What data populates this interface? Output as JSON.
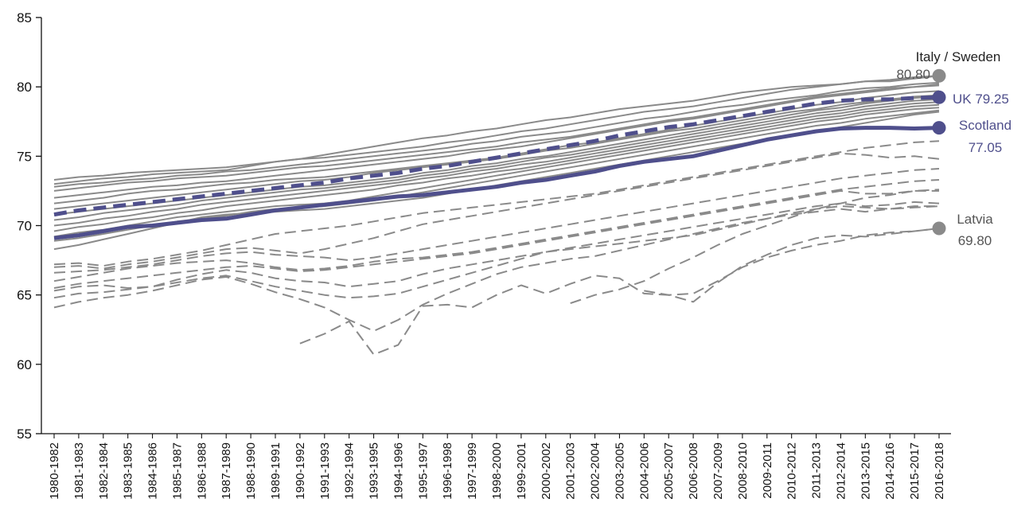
{
  "chart_data": {
    "type": "line",
    "title": "",
    "xlabel": "",
    "ylabel": "",
    "ylim": [
      55,
      85
    ],
    "yticks": [
      55,
      60,
      65,
      70,
      75,
      80,
      85
    ],
    "grid": false,
    "legend": "none",
    "categories": [
      "1980-1982",
      "1981-1983",
      "1982-1984",
      "1983-1985",
      "1984-1986",
      "1985-1987",
      "1986-1988",
      "1987-1989",
      "1988-1990",
      "1989-1991",
      "1990-1992",
      "1991-1993",
      "1992-1994",
      "1993-1995",
      "1994-1996",
      "1995-1997",
      "1996-1998",
      "1997-1999",
      "1998-2000",
      "1999-2001",
      "2000-2002",
      "2001-2003",
      "2002-2004",
      "2003-2005",
      "2004-2006",
      "2005-2007",
      "2006-2008",
      "2007-2009",
      "2008-2010",
      "2009-2011",
      "2010-2012",
      "2011-2013",
      "2012-2014",
      "2013-2015",
      "2014-2016",
      "2015-2017",
      "2016-2018"
    ],
    "colors": {
      "highlight": "#4f4f8c",
      "background_series": "#8a8a8a",
      "label_dark": "#222222",
      "label_grey": "#555555"
    },
    "highlighted_series": [
      {
        "name": "Scotland",
        "style": "solid",
        "values": [
          69.1,
          69.3,
          69.6,
          69.9,
          70.0,
          70.2,
          70.4,
          70.5,
          70.8,
          71.1,
          71.3,
          71.5,
          71.7,
          71.9,
          72.1,
          72.2,
          72.4,
          72.6,
          72.8,
          73.1,
          73.3,
          73.6,
          73.9,
          74.3,
          74.6,
          74.8,
          75.0,
          75.4,
          75.8,
          76.2,
          76.5,
          76.8,
          77.0,
          77.05,
          77.05,
          77.0,
          77.05
        ]
      },
      {
        "name": "UK",
        "style": "dashed",
        "values": [
          70.8,
          71.1,
          71.3,
          71.5,
          71.7,
          71.9,
          72.1,
          72.3,
          72.5,
          72.7,
          72.9,
          73.1,
          73.4,
          73.6,
          73.8,
          74.1,
          74.3,
          74.6,
          74.9,
          75.2,
          75.5,
          75.8,
          76.1,
          76.5,
          76.8,
          77.1,
          77.3,
          77.6,
          77.9,
          78.2,
          78.5,
          78.8,
          79.0,
          79.1,
          79.1,
          79.2,
          79.25
        ]
      }
    ],
    "background_series": [
      {
        "style": "solid",
        "values": [
          73.3,
          73.5,
          73.6,
          73.8,
          73.9,
          74.0,
          74.1,
          74.2,
          74.4,
          74.6,
          74.8,
          75.1,
          75.4,
          75.7,
          76.0,
          76.3,
          76.5,
          76.8,
          77.0,
          77.3,
          77.6,
          77.8,
          78.1,
          78.4,
          78.6,
          78.8,
          79.0,
          79.3,
          79.6,
          79.8,
          80.0,
          80.1,
          80.2,
          80.4,
          80.5,
          80.7,
          80.8
        ]
      },
      {
        "style": "solid",
        "values": [
          73.0,
          73.2,
          73.4,
          73.5,
          73.7,
          73.8,
          73.9,
          74.0,
          74.3,
          74.6,
          74.8,
          74.9,
          75.1,
          75.3,
          75.5,
          75.7,
          76.0,
          76.2,
          76.5,
          76.8,
          77.0,
          77.3,
          77.6,
          77.9,
          78.2,
          78.4,
          78.6,
          78.9,
          79.2,
          79.5,
          79.8,
          80.0,
          80.2,
          80.4,
          80.4,
          80.6,
          80.8
        ]
      },
      {
        "style": "solid",
        "values": [
          72.8,
          73.0,
          73.1,
          73.3,
          73.4,
          73.6,
          73.7,
          73.9,
          74.0,
          74.2,
          74.4,
          74.6,
          74.8,
          75.0,
          75.2,
          75.4,
          75.6,
          75.9,
          76.1,
          76.4,
          76.6,
          76.8,
          77.1,
          77.4,
          77.7,
          77.9,
          78.2,
          78.5,
          78.7,
          79.0,
          79.2,
          79.4,
          79.7,
          79.9,
          80.0,
          80.2,
          80.3
        ]
      },
      {
        "style": "solid",
        "values": [
          72.5,
          72.7,
          72.9,
          73.1,
          73.2,
          73.4,
          73.5,
          73.6,
          73.8,
          74.0,
          74.2,
          74.3,
          74.5,
          74.7,
          74.9,
          75.1,
          75.3,
          75.5,
          75.7,
          76.0,
          76.2,
          76.4,
          76.7,
          77.0,
          77.3,
          77.6,
          77.8,
          78.1,
          78.4,
          78.7,
          79.0,
          79.3,
          79.5,
          79.7,
          79.9,
          80.0,
          80.2
        ]
      },
      {
        "style": "solid",
        "values": [
          72.0,
          72.2,
          72.4,
          72.6,
          72.8,
          72.9,
          73.1,
          73.2,
          73.4,
          73.6,
          73.8,
          74.0,
          74.2,
          74.4,
          74.6,
          74.8,
          75.0,
          75.3,
          75.5,
          75.7,
          76.0,
          76.3,
          76.6,
          76.9,
          77.2,
          77.5,
          77.7,
          78.0,
          78.3,
          78.6,
          78.9,
          79.2,
          79.4,
          79.6,
          79.8,
          80.0,
          80.1
        ]
      },
      {
        "style": "solid",
        "values": [
          71.6,
          71.8,
          72.0,
          72.3,
          72.5,
          72.6,
          72.8,
          73.0,
          73.1,
          73.3,
          73.4,
          73.5,
          73.7,
          73.9,
          74.1,
          74.3,
          74.5,
          74.7,
          74.9,
          75.2,
          75.5,
          75.8,
          76.0,
          76.3,
          76.6,
          76.9,
          77.2,
          77.5,
          77.8,
          78.1,
          78.4,
          78.7,
          78.9,
          79.2,
          79.4,
          79.6,
          79.7
        ]
      },
      {
        "style": "solid",
        "values": [
          71.2,
          71.4,
          71.6,
          71.8,
          72.0,
          72.2,
          72.4,
          72.6,
          72.8,
          73.0,
          73.2,
          73.3,
          73.5,
          73.8,
          74.0,
          74.2,
          74.4,
          74.6,
          74.8,
          75.1,
          75.4,
          75.6,
          75.9,
          76.2,
          76.5,
          76.8,
          77.0,
          77.3,
          77.6,
          77.9,
          78.2,
          78.4,
          78.7,
          78.9,
          79.1,
          79.3,
          79.4
        ]
      },
      {
        "style": "solid",
        "values": [
          70.8,
          71.0,
          71.2,
          71.4,
          71.6,
          71.8,
          72.0,
          72.2,
          72.4,
          72.6,
          72.8,
          72.9,
          73.1,
          73.3,
          73.5,
          73.8,
          74.0,
          74.3,
          74.5,
          74.8,
          75.0,
          75.3,
          75.6,
          75.9,
          76.2,
          76.5,
          76.8,
          77.1,
          77.4,
          77.7,
          78.0,
          78.3,
          78.5,
          78.8,
          79.0,
          79.2,
          79.3
        ]
      },
      {
        "style": "solid",
        "values": [
          70.4,
          70.6,
          70.9,
          71.1,
          71.3,
          71.5,
          71.8,
          72.0,
          72.2,
          72.4,
          72.6,
          72.7,
          72.9,
          73.1,
          73.3,
          73.6,
          73.8,
          74.1,
          74.3,
          74.6,
          74.9,
          75.1,
          75.4,
          75.7,
          76.0,
          76.3,
          76.6,
          76.9,
          77.2,
          77.5,
          77.8,
          78.1,
          78.3,
          78.6,
          78.8,
          79.0,
          79.1
        ]
      },
      {
        "style": "solid",
        "values": [
          70.0,
          70.2,
          70.5,
          70.7,
          71.0,
          71.2,
          71.5,
          71.7,
          71.9,
          72.1,
          72.3,
          72.5,
          72.7,
          72.9,
          73.1,
          73.4,
          73.6,
          73.9,
          74.1,
          74.4,
          74.6,
          74.9,
          75.2,
          75.5,
          75.8,
          76.1,
          76.4,
          76.7,
          77.0,
          77.3,
          77.6,
          77.9,
          78.1,
          78.4,
          78.6,
          78.8,
          78.9
        ]
      },
      {
        "style": "solid",
        "values": [
          69.6,
          69.9,
          70.1,
          70.4,
          70.6,
          70.9,
          71.1,
          71.4,
          71.6,
          71.8,
          72.0,
          72.2,
          72.4,
          72.6,
          72.9,
          73.1,
          73.4,
          73.6,
          73.9,
          74.1,
          74.4,
          74.7,
          75.0,
          75.3,
          75.6,
          75.9,
          76.2,
          76.5,
          76.8,
          77.1,
          77.4,
          77.7,
          77.9,
          78.2,
          78.4,
          78.6,
          78.7
        ]
      },
      {
        "style": "solid",
        "values": [
          69.2,
          69.5,
          69.7,
          70.0,
          70.3,
          70.6,
          70.8,
          71.0,
          71.2,
          71.4,
          71.5,
          71.6,
          71.8,
          72.1,
          72.4,
          72.7,
          73.0,
          73.3,
          73.6,
          73.9,
          74.2,
          74.5,
          74.8,
          75.1,
          75.4,
          75.7,
          76.0,
          76.3,
          76.6,
          76.9,
          77.2,
          77.5,
          77.7,
          78.0,
          78.2,
          78.4,
          78.5
        ]
      },
      {
        "style": "solid",
        "values": [
          68.9,
          69.1,
          69.4,
          69.7,
          70.0,
          70.3,
          70.5,
          70.7,
          71.0,
          71.2,
          71.3,
          71.4,
          71.6,
          71.8,
          72.1,
          72.4,
          72.7,
          73.0,
          73.3,
          73.6,
          73.9,
          74.2,
          74.5,
          74.8,
          75.1,
          75.4,
          75.7,
          76.0,
          76.3,
          76.6,
          76.9,
          77.2,
          77.4,
          77.7,
          77.9,
          78.1,
          78.3
        ]
      },
      {
        "style": "solid",
        "values": [
          68.3,
          68.6,
          69.0,
          69.4,
          69.8,
          70.2,
          70.6,
          70.8,
          70.9,
          71.0,
          71.1,
          71.2,
          71.4,
          71.6,
          71.8,
          72.0,
          72.3,
          72.6,
          72.9,
          73.2,
          73.5,
          73.8,
          74.1,
          74.4,
          74.7,
          75.0,
          75.3,
          75.6,
          75.9,
          76.2,
          76.5,
          76.8,
          77.1,
          77.4,
          77.7,
          78.0,
          78.2
        ]
      },
      {
        "style": "dashed",
        "values": [
          67.2,
          67.3,
          67.1,
          67.4,
          67.6,
          67.9,
          68.2,
          68.6,
          69.0,
          69.4,
          69.6,
          69.8,
          70.0,
          70.3,
          70.6,
          70.9,
          71.1,
          71.3,
          71.5,
          71.7,
          71.9,
          72.1,
          72.3,
          72.6,
          72.9,
          73.2,
          73.5,
          73.8,
          74.1,
          74.4,
          74.7,
          75.0,
          75.3,
          75.6,
          75.8,
          76.0,
          76.1
        ]
      },
      {
        "style": "dashed",
        "values": [
          67.0,
          67.1,
          66.9,
          67.2,
          67.4,
          67.7,
          68.0,
          68.3,
          68.4,
          68.2,
          68.0,
          68.3,
          68.7,
          69.1,
          69.6,
          70.1,
          70.4,
          70.7,
          71.0,
          71.3,
          71.6,
          71.9,
          72.2,
          72.5,
          72.8,
          73.1,
          73.4,
          73.7,
          74.0,
          74.3,
          74.6,
          74.9,
          75.2,
          75.1,
          74.9,
          75.0,
          74.8
        ]
      },
      {
        "style": "dashed",
        "values": [
          66.6,
          66.7,
          66.8,
          67.0,
          67.2,
          67.5,
          67.8,
          68.0,
          68.1,
          67.9,
          67.8,
          67.7,
          67.5,
          67.7,
          68.0,
          68.3,
          68.6,
          68.9,
          69.2,
          69.5,
          69.8,
          70.1,
          70.4,
          70.7,
          71.0,
          71.3,
          71.6,
          71.9,
          72.2,
          72.5,
          72.8,
          73.1,
          73.4,
          73.6,
          73.8,
          74.0,
          74.1
        ]
      },
      {
        "style": "dashed",
        "values": [
          66.0,
          66.3,
          66.6,
          66.9,
          67.1,
          67.3,
          67.4,
          67.5,
          67.3,
          67.0,
          66.8,
          66.9,
          67.1,
          67.4,
          67.6,
          67.7,
          67.9,
          68.1,
          68.4,
          68.7,
          69.0,
          69.3,
          69.6,
          69.9,
          70.2,
          70.5,
          70.8,
          71.1,
          71.4,
          71.7,
          72.0,
          72.3,
          72.6,
          72.8,
          73.0,
          73.2,
          73.3
        ]
      },
      {
        "style": "dashed",
        "values": [
          65.5,
          65.8,
          66.0,
          66.2,
          66.4,
          66.6,
          66.8,
          67.0,
          67.1,
          66.9,
          66.7,
          66.8,
          67.0,
          67.2,
          67.4,
          67.6,
          67.8,
          68.0,
          68.3,
          68.6,
          68.9,
          69.2,
          69.5,
          69.8,
          70.1,
          70.4,
          70.7,
          71.0,
          71.3,
          71.6,
          71.9,
          72.2,
          72.5,
          72.3,
          72.3,
          72.5,
          72.5
        ]
      },
      {
        "style": "dashed",
        "values": [
          65.3,
          65.6,
          65.7,
          65.5,
          65.6,
          66.1,
          66.5,
          66.8,
          66.6,
          66.2,
          66.0,
          65.9,
          65.6,
          65.8,
          66.0,
          66.5,
          66.9,
          67.2,
          67.5,
          67.8,
          68.1,
          68.4,
          68.7,
          69.0,
          69.3,
          69.6,
          69.9,
          70.2,
          70.5,
          70.8,
          71.1,
          71.4,
          71.6,
          71.4,
          71.5,
          71.7,
          71.6
        ]
      },
      {
        "style": "dashed",
        "values": [
          64.8,
          65.1,
          65.2,
          65.4,
          65.6,
          65.9,
          66.2,
          66.4,
          66.0,
          65.6,
          65.3,
          65.0,
          64.8,
          64.9,
          65.1,
          65.6,
          66.1,
          66.6,
          67.1,
          67.6,
          68.1,
          68.3,
          68.5,
          68.7,
          68.9,
          69.1,
          69.3,
          69.7,
          70.1,
          70.5,
          70.9,
          71.2,
          71.4,
          71.3,
          71.2,
          71.3,
          71.4
        ]
      },
      {
        "style": "dashed",
        "values": [
          64.1,
          64.5,
          64.8,
          65.0,
          65.3,
          65.7,
          66.1,
          66.3,
          65.8,
          65.2,
          64.7,
          64.1,
          63.2,
          62.4,
          63.2,
          64.3,
          65.1,
          65.8,
          66.5,
          67.0,
          67.3,
          67.6,
          67.8,
          68.2,
          68.6,
          69.0,
          69.4,
          69.8,
          70.2,
          70.5,
          70.8,
          71.0,
          71.2,
          71.0,
          71.2,
          71.4,
          71.4
        ]
      },
      {
        "style": "dashed",
        "values": [
          null,
          null,
          null,
          null,
          null,
          null,
          null,
          null,
          null,
          null,
          null,
          null,
          null,
          null,
          null,
          null,
          null,
          null,
          null,
          null,
          null,
          null,
          null,
          null,
          65.3,
          65.0,
          65.1,
          66.0,
          67.0,
          67.7,
          68.2,
          68.6,
          68.9,
          69.3,
          69.5,
          69.6,
          69.8
        ]
      },
      {
        "style": "dashed",
        "values": [
          null,
          null,
          null,
          null,
          null,
          null,
          null,
          null,
          null,
          null,
          null,
          null,
          null,
          null,
          null,
          null,
          null,
          null,
          null,
          null,
          null,
          64.4,
          65.0,
          65.4,
          66.0,
          66.9,
          67.7,
          68.6,
          69.4,
          70.0,
          70.6,
          71.2,
          71.6,
          72.0,
          72.2,
          72.5,
          72.6
        ]
      },
      {
        "style": "dashed",
        "values": [
          null,
          null,
          null,
          null,
          null,
          null,
          null,
          null,
          null,
          null,
          61.5,
          62.2,
          63.1,
          60.7,
          61.4,
          64.2,
          64.3,
          64.1,
          65.0,
          65.7,
          65.1,
          65.8,
          66.4,
          66.2,
          65.1,
          65.0,
          64.5,
          65.9,
          67.1,
          67.9,
          68.6,
          69.1,
          69.3,
          69.2,
          69.4,
          69.6,
          69.8
        ]
      }
    ],
    "annotations": {
      "top_name": "Italy / Sweden",
      "top_value": "80.80",
      "uk": "UK 79.25",
      "scotland_name": "Scotland",
      "scotland_value": "77.05",
      "latvia_name": "Latvia",
      "latvia_value": "69.80"
    },
    "end_markers": [
      {
        "value": 80.8,
        "color": "grey"
      },
      {
        "value": 79.25,
        "color": "highlight"
      },
      {
        "value": 77.05,
        "color": "highlight"
      },
      {
        "value": 69.8,
        "color": "grey"
      }
    ]
  }
}
